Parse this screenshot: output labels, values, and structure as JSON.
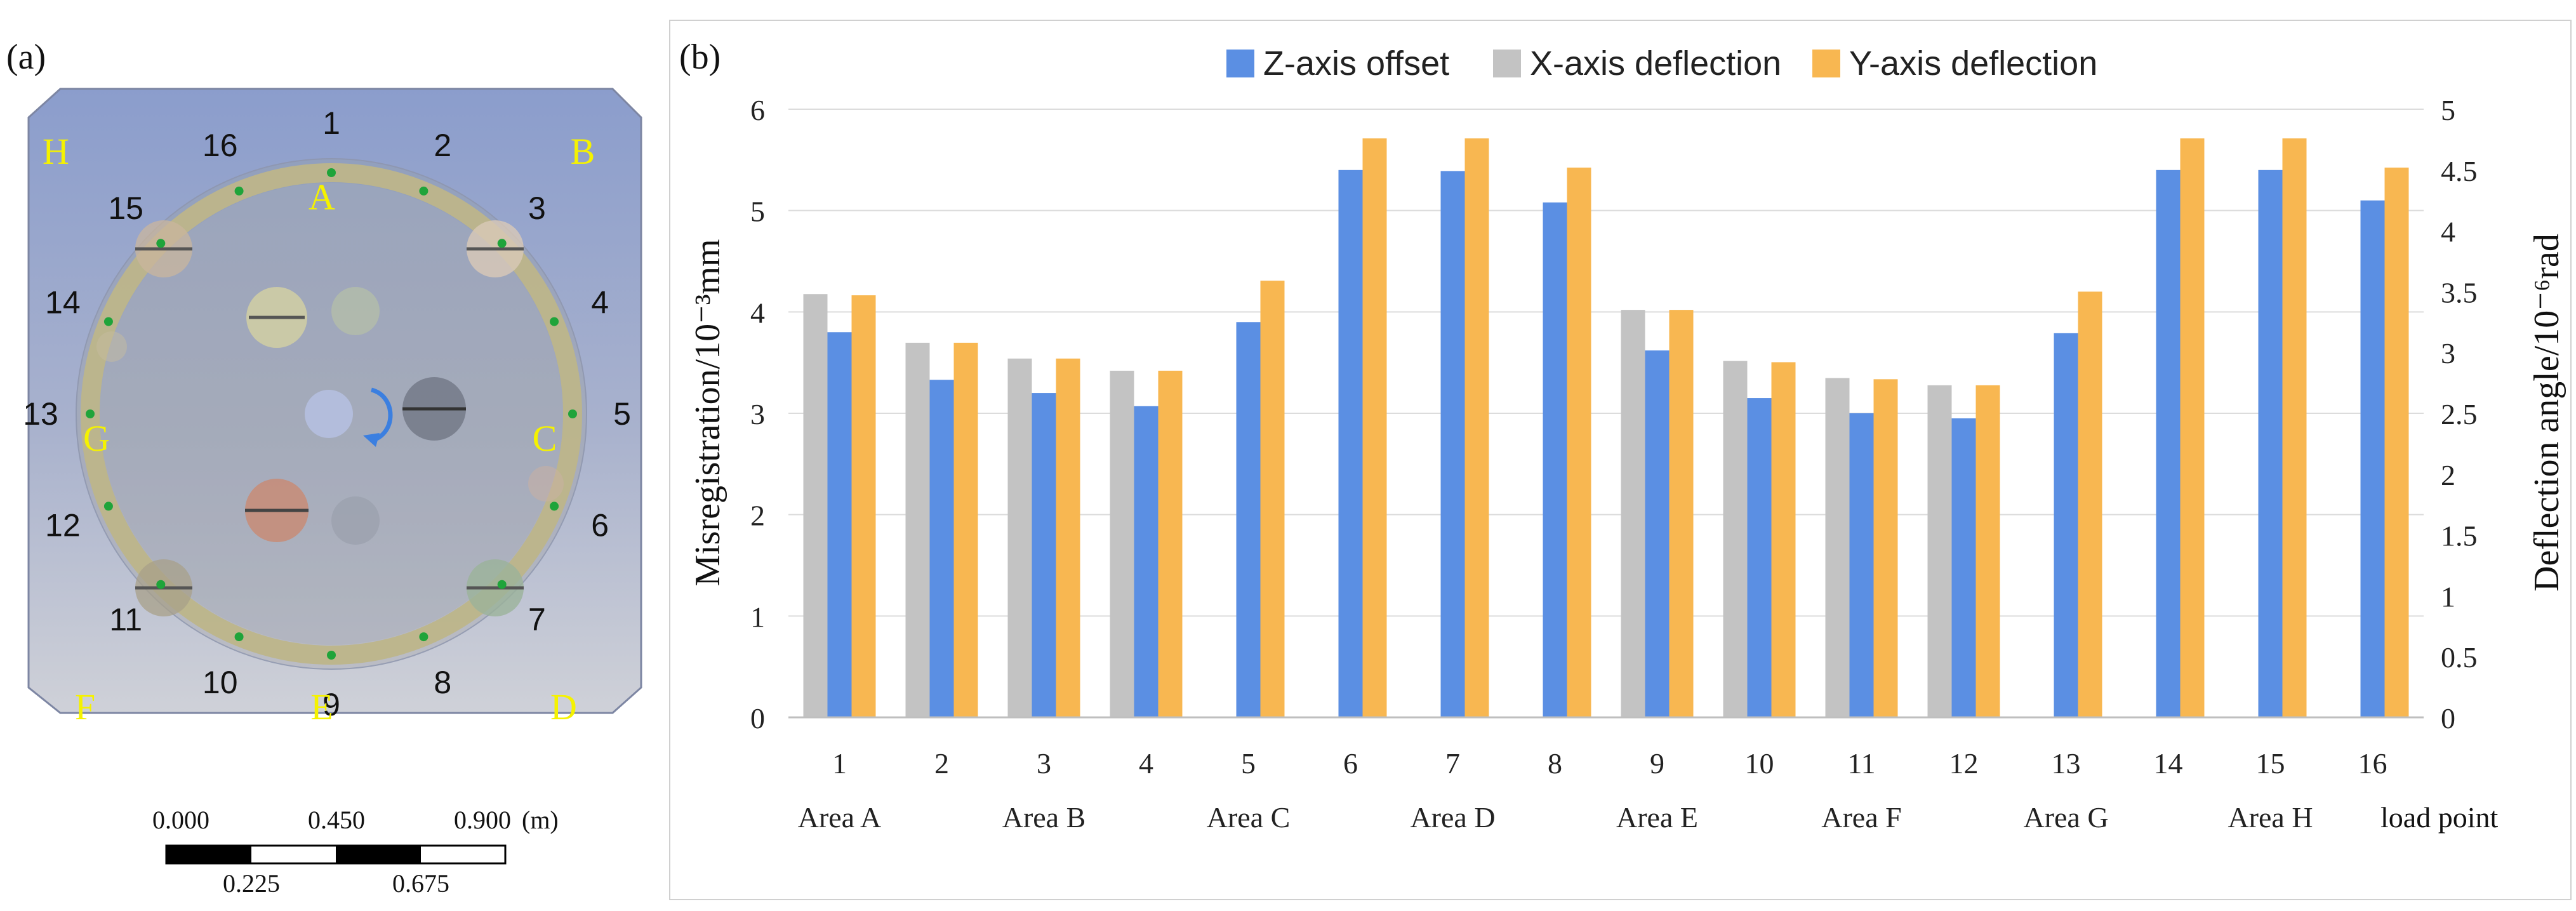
{
  "panel_a": {
    "label": "(a)",
    "area_letters_outer": [
      "H",
      "B",
      "G",
      "C",
      "F",
      "D"
    ],
    "area_letters_ring": [
      "A",
      "E"
    ],
    "point_numbers": [
      "1",
      "2",
      "3",
      "4",
      "5",
      "6",
      "7",
      "8",
      "9",
      "10",
      "11",
      "12",
      "13",
      "14",
      "15",
      "16"
    ],
    "scale_bar": {
      "top_labels": [
        "0.000",
        "0.450",
        "0.900"
      ],
      "unit": "(m)",
      "bottom_labels": [
        "0.225",
        "0.675"
      ]
    },
    "colors": {
      "panel_fill": "#9aa8c9",
      "ring": "#bdb58a",
      "marker": "#1fa43a",
      "letters": "#f5f200"
    }
  },
  "panel_b": {
    "label": "(b)"
  },
  "chart_data": {
    "type": "bar",
    "title": "",
    "categories": [
      "1",
      "2",
      "3",
      "4",
      "5",
      "6",
      "7",
      "8",
      "9",
      "10",
      "11",
      "12",
      "13",
      "14",
      "15",
      "16"
    ],
    "area_labels": [
      "Area A",
      "Area B",
      "Area C",
      "Area D",
      "Area E",
      "Area F",
      "Area G",
      "Area H"
    ],
    "xlabel": "load point",
    "ylabel_left": "Misregistration/10⁻³mm",
    "ylabel_right": "Deflection angle/10⁻⁶rad",
    "ylim_left": [
      0,
      6
    ],
    "ylim_right": [
      0,
      5
    ],
    "yticks_left": [
      "0",
      "1",
      "2",
      "3",
      "4",
      "5",
      "6"
    ],
    "yticks_right": [
      "0",
      "0.5",
      "1",
      "1.5",
      "2",
      "2.5",
      "3",
      "3.5",
      "4",
      "4.5",
      "5"
    ],
    "legend_position": "top",
    "series": [
      {
        "name": "Z-axis offset",
        "axis": "left",
        "color": "#5b8fe3",
        "values": [
          3.8,
          3.33,
          3.2,
          3.07,
          3.9,
          5.4,
          5.39,
          5.08,
          3.62,
          3.15,
          3.0,
          2.95,
          3.79,
          5.4,
          5.4,
          5.1
        ]
      },
      {
        "name": "X-axis deflection",
        "axis": "right",
        "color": "#c3c3c3",
        "values": [
          3.48,
          3.08,
          2.95,
          2.85,
          null,
          null,
          null,
          null,
          3.35,
          2.93,
          2.79,
          2.73,
          null,
          null,
          null,
          null
        ]
      },
      {
        "name": "Y-axis deflection",
        "axis": "right",
        "color": "#f8b751",
        "values": [
          3.47,
          3.08,
          2.95,
          2.85,
          3.59,
          4.76,
          4.76,
          4.52,
          3.35,
          2.92,
          2.78,
          2.73,
          3.5,
          4.76,
          4.76,
          4.52
        ]
      }
    ]
  }
}
